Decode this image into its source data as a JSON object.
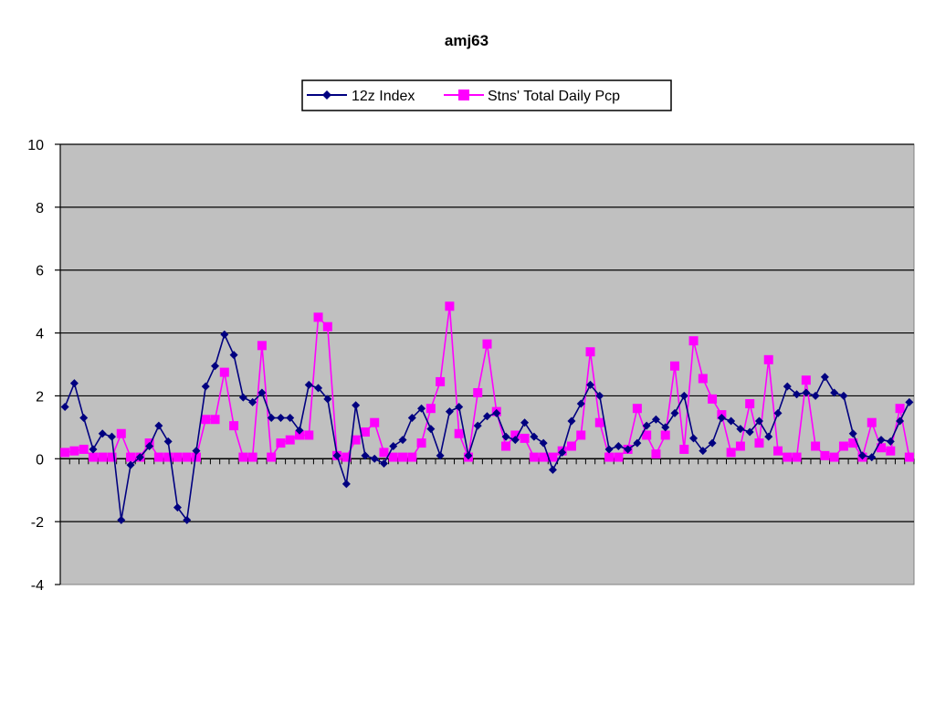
{
  "chart_data": {
    "type": "line",
    "title": "amj63",
    "xlabel": "",
    "ylabel": "",
    "ylim": [
      -4,
      10
    ],
    "yticks": [
      -4,
      -2,
      0,
      2,
      4,
      6,
      8,
      10
    ],
    "grid": true,
    "legend_position": "top-center",
    "colors": {
      "plot_background": "#c0c0c0",
      "gridline": "#000000",
      "series_index": "#000080",
      "series_pcp": "#ff00ff"
    },
    "series": [
      {
        "name": "12z Index",
        "marker": "diamond",
        "color": "#000080",
        "values": [
          1.65,
          2.4,
          1.3,
          0.3,
          0.8,
          0.7,
          -1.95,
          -0.2,
          0.05,
          0.4,
          1.05,
          0.55,
          -1.55,
          -1.95,
          0.25,
          2.3,
          2.95,
          3.95,
          3.3,
          1.95,
          1.8,
          2.1,
          1.3,
          1.3,
          1.3,
          0.9,
          2.35,
          2.25,
          1.9,
          0.1,
          -0.8,
          1.7,
          0.1,
          0.0,
          -0.15,
          0.4,
          0.6,
          1.3,
          1.6,
          0.95,
          0.1,
          1.5,
          1.65,
          0.1,
          1.05,
          1.35,
          1.45,
          0.7,
          0.6,
          1.15,
          0.7,
          0.5,
          -0.35,
          0.2,
          1.2,
          1.75,
          2.35,
          2.0,
          0.3,
          0.4,
          0.3,
          0.5,
          1.05,
          1.25,
          1.0,
          1.45,
          2.0,
          0.65,
          0.25,
          0.5,
          1.3,
          1.2,
          0.95,
          0.85,
          1.2,
          0.7,
          1.45,
          2.3,
          2.05,
          2.1,
          2.0,
          2.6,
          2.1,
          2.0,
          0.8,
          0.1,
          0.05,
          0.6,
          0.55,
          1.2,
          1.8
        ]
      },
      {
        "name": "Stns' Total Daily Pcp",
        "marker": "square",
        "color": "#ff00ff",
        "values": [
          0.2,
          0.25,
          0.3,
          0.05,
          0.05,
          0.05,
          0.8,
          0.05,
          0.05,
          0.5,
          0.05,
          0.05,
          0.05,
          0.05,
          0.05,
          1.25,
          1.25,
          2.75,
          1.05,
          0.05,
          0.05,
          3.6,
          0.05,
          0.5,
          0.6,
          0.75,
          0.75,
          4.5,
          4.2,
          0.1,
          0.05,
          0.6,
          0.85,
          1.15,
          0.2,
          0.05,
          0.05,
          0.05,
          0.5,
          1.6,
          2.45,
          4.85,
          0.8,
          0.05,
          2.1,
          3.65,
          1.5,
          0.4,
          0.75,
          0.65,
          0.05,
          0.05,
          0.05,
          0.25,
          0.4,
          0.75,
          3.4,
          1.15,
          0.05,
          0.05,
          0.3,
          1.6,
          0.75,
          0.15,
          0.75,
          2.95,
          0.3,
          3.75,
          2.55,
          1.9,
          1.4,
          0.2,
          0.4,
          1.75,
          0.5,
          3.15,
          0.25,
          0.05,
          0.05,
          2.5,
          0.4,
          0.1,
          0.05,
          0.4,
          0.5,
          0.05,
          1.15,
          0.35,
          0.25,
          1.6,
          0.05
        ]
      }
    ]
  }
}
